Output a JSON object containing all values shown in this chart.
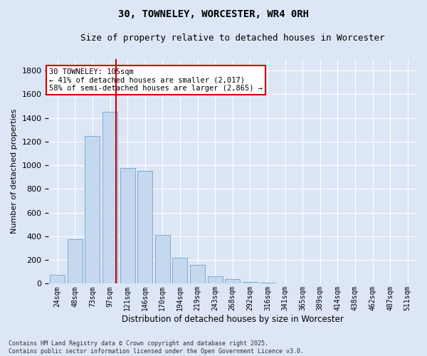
{
  "title": "30, TOWNELEY, WORCESTER, WR4 0RH",
  "subtitle": "Size of property relative to detached houses in Worcester",
  "xlabel": "Distribution of detached houses by size in Worcester",
  "ylabel": "Number of detached properties",
  "bar_color": "#c5d8ee",
  "bar_edge_color": "#7aadd4",
  "background_color": "#dce6f5",
  "fig_background_color": "#dce6f5",
  "grid_color": "#ffffff",
  "vline_x": 4,
  "vline_color": "#cc0000",
  "annotation_text": "30 TOWNELEY: 105sqm\n← 41% of detached houses are smaller (2,017)\n58% of semi-detached houses are larger (2,865) →",
  "annotation_box_color": "#ffffff",
  "annotation_box_edge": "#cc0000",
  "categories": [
    "24sqm",
    "48sqm",
    "73sqm",
    "97sqm",
    "121sqm",
    "146sqm",
    "170sqm",
    "194sqm",
    "219sqm",
    "243sqm",
    "268sqm",
    "292sqm",
    "316sqm",
    "341sqm",
    "365sqm",
    "389sqm",
    "414sqm",
    "438sqm",
    "462sqm",
    "487sqm",
    "511sqm"
  ],
  "values": [
    75,
    375,
    1250,
    1450,
    975,
    950,
    410,
    220,
    160,
    60,
    40,
    15,
    10,
    5,
    5,
    5,
    5,
    2,
    2,
    2,
    2
  ],
  "ylim": [
    0,
    1900
  ],
  "yticks": [
    0,
    200,
    400,
    600,
    800,
    1000,
    1200,
    1400,
    1600,
    1800
  ],
  "footnote": "Contains HM Land Registry data © Crown copyright and database right 2025.\nContains public sector information licensed under the Open Government Licence v3.0."
}
